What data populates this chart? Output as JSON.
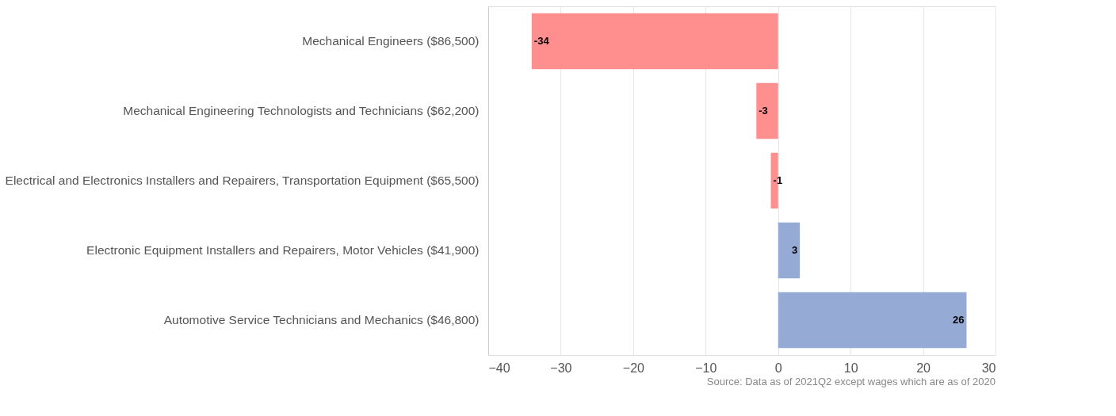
{
  "chart_data": {
    "type": "bar",
    "orientation": "horizontal",
    "categories": [
      "Mechanical Engineers ($86,500)",
      "Mechanical Engineering Technologists and Technicians ($62,200)",
      "Electrical and Electronics Installers and Repairers, Transportation Equipment ($65,500)",
      "Electronic Equipment Installers and Repairers, Motor Vehicles ($41,900)",
      "Automotive Service Technicians and Mechanics ($46,800)"
    ],
    "values": [
      -34,
      -3,
      -1,
      3,
      26
    ],
    "colors": [
      "#ff8f8f",
      "#ff8f8f",
      "#ff8f8f",
      "#95aad4",
      "#95aad4"
    ],
    "xlim": [
      -40,
      30
    ],
    "xticks": [
      -40,
      -30,
      -20,
      -10,
      0,
      10,
      20,
      30
    ],
    "grid": "x",
    "data_labels": true,
    "annotations": [
      "Source: Data as of 2021Q2 except wages which are as of 2020"
    ]
  }
}
